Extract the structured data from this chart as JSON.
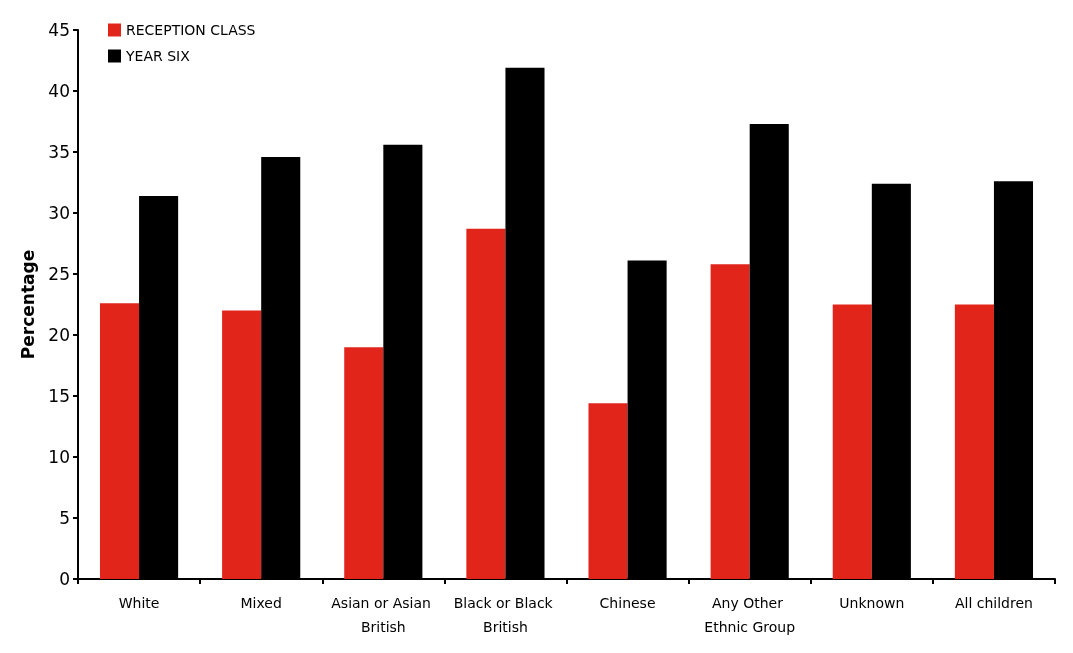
{
  "chart_data": {
    "type": "bar",
    "ylabel": "Percentage",
    "categories": [
      "White",
      "Mixed",
      "Asian or Asian British",
      "Black or Black British",
      "Chinese",
      "Any Other Ethnic Group",
      "Unknown",
      "All children"
    ],
    "series": [
      {
        "name": "RECEPTION CLASS",
        "color": "#e1251b",
        "values": [
          22.6,
          22.0,
          19.0,
          28.7,
          14.4,
          25.8,
          22.5,
          22.5
        ]
      },
      {
        "name": "YEAR SIX",
        "color": "#000000",
        "values": [
          31.4,
          34.6,
          35.6,
          41.9,
          26.1,
          37.3,
          32.4,
          32.6
        ]
      }
    ],
    "ylim": [
      0,
      45
    ],
    "yticks": [
      0,
      5,
      10,
      15,
      20,
      25,
      30,
      35,
      40,
      45
    ],
    "grid": false,
    "legend": "top left"
  }
}
